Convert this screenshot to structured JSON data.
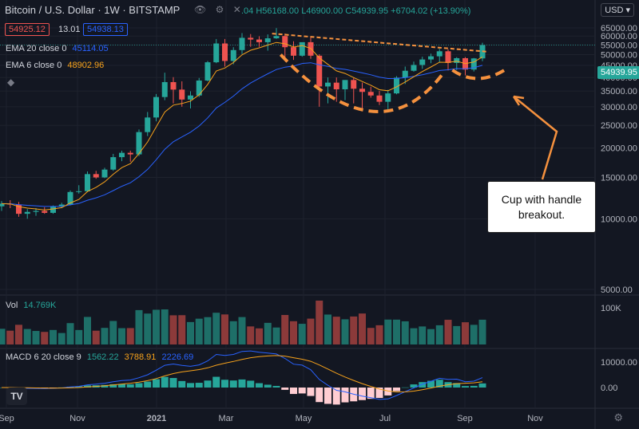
{
  "header": {
    "symbol": "Bitcoin / U.S. Dollar · 1W · BITSTAMP",
    "ohlc_text": ".04 H56168.00 L46900.00 C54939.95 +6704.02 (+13.90%)",
    "bid": "54925.12",
    "spread": "13.01",
    "ask": "54938.13",
    "icons": [
      "eye-icon",
      "gear-icon",
      "close-icon"
    ]
  },
  "indicators": {
    "ema20_label": "EMA 20 close 0",
    "ema20_value": "45114.05",
    "ema6_label": "EMA 6 close 0",
    "ema6_value": "48902.96",
    "vol_label": "Vol",
    "vol_value": "14.769K",
    "macd_label": "MACD 6 20 close 9",
    "macd_v1": "1562.22",
    "macd_v2": "3788.91",
    "macd_v3": "2226.69"
  },
  "currency_button": "USD",
  "last_price": "54939.95",
  "annotation": "Cup with handle breakout.",
  "colors": {
    "up": "#26a69a",
    "down": "#ef5350",
    "ema20": "#2962ff",
    "ema6": "#f7a21b",
    "annotation": "#f5913e",
    "macd": "#2962ff",
    "signal": "#f7a21b"
  },
  "chart_data": {
    "type": "candlestick",
    "title": "Bitcoin / U.S. Dollar · 1W · BITSTAMP",
    "x_ticks": [
      "Sep",
      "Nov",
      "2021",
      "Mar",
      "May",
      "Jul",
      "Sep",
      "Nov"
    ],
    "y_ticks": [
      "65000.00",
      "60000.00",
      "55000.00",
      "50000.00",
      "45000.00",
      "40000.00",
      "35000.00",
      "30000.00",
      "25000.00",
      "20000.00",
      "15000.00",
      "10000.00",
      "5000.00"
    ],
    "y_scale": "log",
    "vol_ticks": [
      "100K"
    ],
    "macd_ticks": [
      "10000.00",
      "0.00"
    ],
    "candles": [
      [
        11300,
        11900,
        10800,
        11600
      ],
      [
        11600,
        12000,
        11100,
        11500
      ],
      [
        11500,
        11800,
        10200,
        10500
      ],
      [
        10500,
        11000,
        10000,
        10700
      ],
      [
        10700,
        11100,
        10300,
        10800
      ],
      [
        10800,
        11200,
        10500,
        10600
      ],
      [
        10600,
        11400,
        10500,
        11300
      ],
      [
        11300,
        11700,
        11100,
        11500
      ],
      [
        11500,
        13200,
        11400,
        13000
      ],
      [
        13000,
        13900,
        12800,
        13100
      ],
      [
        13100,
        15900,
        13000,
        15500
      ],
      [
        15500,
        16000,
        14800,
        15000
      ],
      [
        15000,
        16500,
        14900,
        16200
      ],
      [
        16200,
        18900,
        16000,
        18300
      ],
      [
        18300,
        19500,
        17600,
        19100
      ],
      [
        19100,
        19500,
        17500,
        18800
      ],
      [
        18800,
        24000,
        18500,
        23400
      ],
      [
        23400,
        28500,
        22500,
        27000
      ],
      [
        27000,
        34000,
        26000,
        33000
      ],
      [
        33000,
        41900,
        32000,
        38200
      ],
      [
        38200,
        40100,
        31000,
        35500
      ],
      [
        35500,
        38500,
        30000,
        32200
      ],
      [
        32200,
        34900,
        29500,
        33500
      ],
      [
        33500,
        39800,
        33000,
        38800
      ],
      [
        38800,
        47000,
        38500,
        46400
      ],
      [
        46400,
        58300,
        46000,
        55800
      ],
      [
        55800,
        58300,
        44500,
        47000
      ],
      [
        47000,
        53800,
        45500,
        52300
      ],
      [
        52300,
        61800,
        50300,
        59000
      ],
      [
        59000,
        61200,
        54000,
        58000
      ],
      [
        58000,
        59900,
        54000,
        56500
      ],
      [
        56500,
        61000,
        52000,
        58700
      ],
      [
        58700,
        64900,
        58400,
        60000
      ],
      [
        60000,
        61500,
        47000,
        53800
      ],
      [
        53800,
        57000,
        47500,
        49500
      ],
      [
        49500,
        56400,
        49000,
        56500
      ],
      [
        56500,
        59500,
        48000,
        49500
      ],
      [
        49500,
        50200,
        30000,
        36600
      ],
      [
        36600,
        40000,
        31000,
        38000
      ],
      [
        38000,
        40000,
        31500,
        35600
      ],
      [
        35600,
        39000,
        32000,
        39000
      ],
      [
        39000,
        39800,
        31000,
        35800
      ],
      [
        35800,
        38000,
        28800,
        34700
      ],
      [
        34700,
        36500,
        32800,
        33500
      ],
      [
        33500,
        35000,
        30500,
        31500
      ],
      [
        31500,
        35400,
        29300,
        34200
      ],
      [
        34200,
        40500,
        33900,
        39900
      ],
      [
        39900,
        44500,
        37500,
        42700
      ],
      [
        42700,
        46700,
        42300,
        45200
      ],
      [
        45200,
        49000,
        43500,
        47700
      ],
      [
        47700,
        50500,
        46000,
        49200
      ],
      [
        49200,
        52900,
        46300,
        51700
      ],
      [
        51700,
        52700,
        42800,
        46100
      ],
      [
        46100,
        48800,
        43000,
        48300
      ],
      [
        48300,
        48800,
        40800,
        43200
      ],
      [
        43200,
        48400,
        42400,
        48200
      ],
      [
        48200,
        56168,
        46900,
        54939.95
      ]
    ],
    "series": [
      {
        "name": "EMA 20 close 0",
        "last": 45114.05
      },
      {
        "name": "EMA 6 close 0",
        "last": 48902.96
      },
      {
        "name": "Vol",
        "last": "14.769K"
      },
      {
        "name": "MACD 6 20 close 9",
        "values": [
          1562.22,
          3788.91,
          2226.69
        ]
      }
    ],
    "grid": true
  }
}
